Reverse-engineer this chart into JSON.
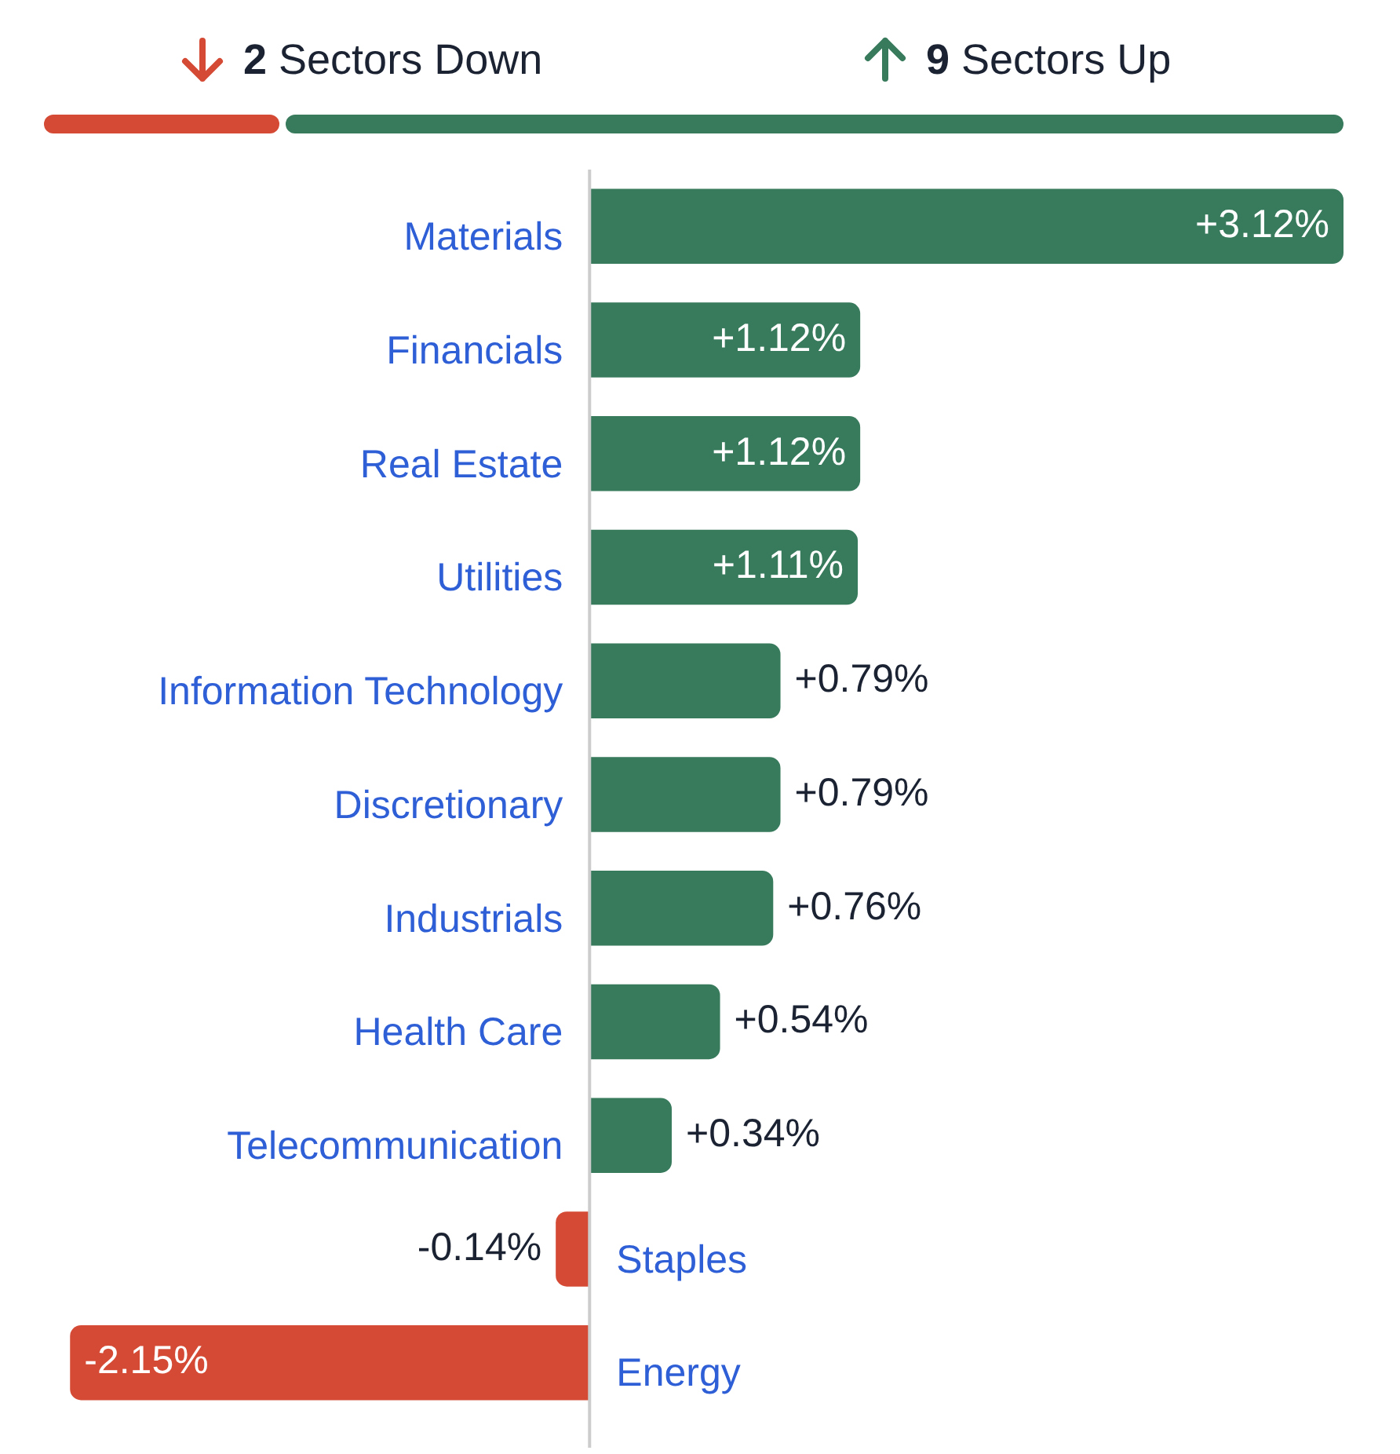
{
  "chart_data": {
    "type": "bar",
    "orientation": "horizontal",
    "annotations": [
      "2 Sectors Down",
      "9 Sectors Up"
    ],
    "categories": [
      "Materials",
      "Financials",
      "Real Estate",
      "Utilities",
      "Information Technology",
      "Discretionary",
      "Industrials",
      "Health Care",
      "Telecommunication",
      "Staples",
      "Energy"
    ],
    "values": [
      3.12,
      1.12,
      1.12,
      1.11,
      0.79,
      0.79,
      0.76,
      0.54,
      0.34,
      -0.14,
      -2.15
    ],
    "colors": [
      "#377a5c",
      "#377a5c",
      "#377a5c",
      "#377a5c",
      "#377a5c",
      "#377a5c",
      "#377a5c",
      "#377a5c",
      "#377a5c",
      "#d44a35",
      "#d44a35"
    ],
    "value_labels": [
      "+3.12%",
      "+1.12%",
      "+1.12%",
      "+1.11%",
      "+0.79%",
      "+0.79%",
      "+0.76%",
      "+0.54%",
      "+0.34%",
      "-0.14%",
      "-2.15%"
    ],
    "legend": false
  }
}
